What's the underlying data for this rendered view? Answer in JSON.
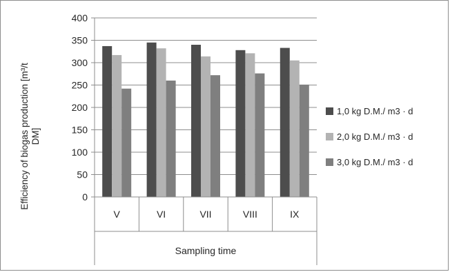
{
  "chart_data": {
    "type": "bar",
    "title": "",
    "xlabel": "Sampling time",
    "ylabel": "Efficiency of biogas production [m³/t DM]",
    "ylabel_lines": [
      "Efficiency of biogas production [m³/t",
      "DM]"
    ],
    "categories": [
      "V",
      "VI",
      "VII",
      "VIII",
      "IX"
    ],
    "ylim": [
      0,
      400
    ],
    "yticks": [
      0,
      50,
      100,
      150,
      200,
      250,
      300,
      350,
      400
    ],
    "grid": true,
    "legend_position": "right",
    "series": [
      {
        "name": "1,0 kg D.M./ m3 · d",
        "color": "#4d4d4d",
        "values": [
          337,
          345,
          340,
          328,
          333
        ]
      },
      {
        "name": "2,0 kg D.M./ m3 · d",
        "color": "#b3b3b3",
        "values": [
          317,
          332,
          314,
          321,
          305
        ]
      },
      {
        "name": "3,0 kg D.M./ m3 · d",
        "color": "#7f7f7f",
        "values": [
          242,
          260,
          272,
          276,
          251
        ]
      }
    ]
  }
}
